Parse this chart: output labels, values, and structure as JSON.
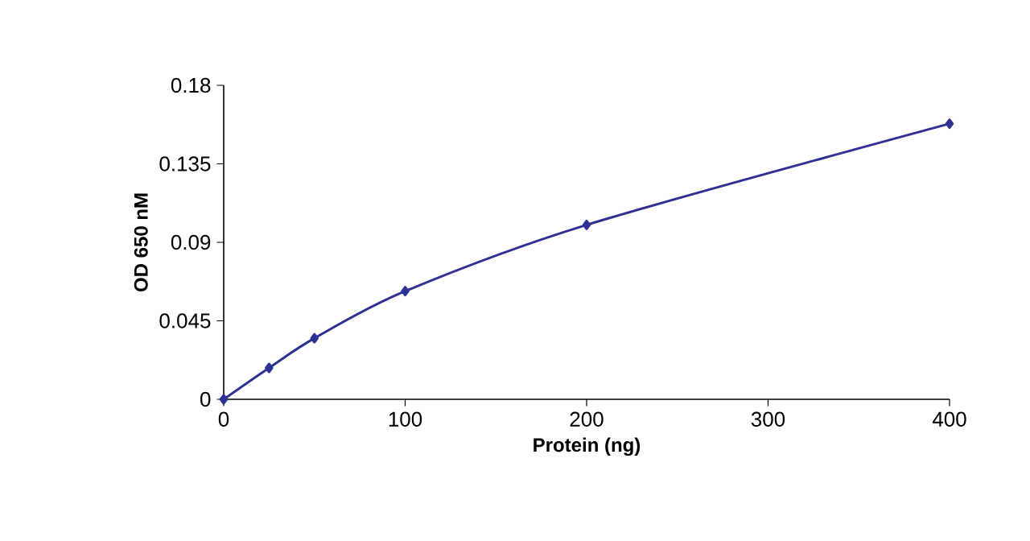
{
  "chart_data": {
    "type": "line",
    "xlabel": "Protein (ng)",
    "ylabel": "OD 650 nM",
    "x": [
      0,
      25,
      50,
      100,
      200,
      400
    ],
    "series": [
      {
        "color": "#2e3192",
        "values": [
          0,
          0.018,
          0.035,
          0.062,
          0.1,
          0.158
        ]
      }
    ],
    "xlim": [
      0,
      400
    ],
    "xticks": [
      0,
      100,
      200,
      300,
      400
    ],
    "ylim": [
      0,
      0.18
    ],
    "yticks": [
      0,
      0.045,
      0.09,
      0.135,
      0.18
    ],
    "marker": "diamond",
    "line_style": "solid"
  }
}
